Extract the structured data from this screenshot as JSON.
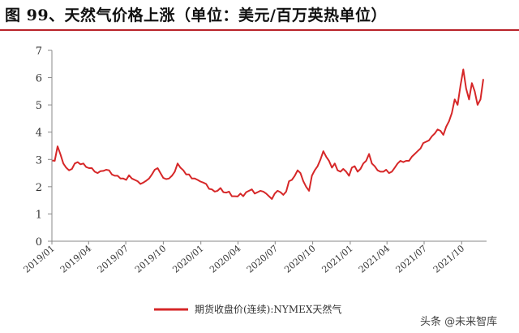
{
  "title": "图 99、天然气价格上涨（单位：美元/百万英热单位）",
  "watermark": "头条 @未来智库",
  "colors": {
    "line": "#d62728",
    "axis": "#888888",
    "title_rule": "#b9232a"
  },
  "chart_data": {
    "type": "line",
    "title": "图 99、天然气价格上涨（单位：美元/百万英热单位）",
    "xlabel": "",
    "ylabel": "",
    "ylim": [
      0,
      7
    ],
    "yticks": [
      0,
      1,
      2,
      3,
      4,
      5,
      6,
      7
    ],
    "xticks": [
      "2019/01",
      "2019/04",
      "2019/07",
      "2019/10",
      "2020/01",
      "2020/04",
      "2020/07",
      "2020/10",
      "2021/01",
      "2021/04",
      "2021/07",
      "2021/10"
    ],
    "grid": false,
    "legend_position": "bottom",
    "series": [
      {
        "name": "期货收盘价(连续):NYMEX天然气",
        "color": "#d62728",
        "points": [
          [
            "2019/01/02",
            2.96
          ],
          [
            "2019/01/08",
            2.95
          ],
          [
            "2019/01/15",
            3.48
          ],
          [
            "2019/01/22",
            3.18
          ],
          [
            "2019/01/29",
            2.85
          ],
          [
            "2019/02/05",
            2.7
          ],
          [
            "2019/02/12",
            2.6
          ],
          [
            "2019/02/19",
            2.65
          ],
          [
            "2019/02/26",
            2.85
          ],
          [
            "2019/03/05",
            2.9
          ],
          [
            "2019/03/12",
            2.82
          ],
          [
            "2019/03/19",
            2.85
          ],
          [
            "2019/03/26",
            2.72
          ],
          [
            "2019/04/02",
            2.68
          ],
          [
            "2019/04/09",
            2.68
          ],
          [
            "2019/04/16",
            2.55
          ],
          [
            "2019/04/23",
            2.5
          ],
          [
            "2019/04/30",
            2.57
          ],
          [
            "2019/05/07",
            2.58
          ],
          [
            "2019/05/14",
            2.62
          ],
          [
            "2019/05/21",
            2.6
          ],
          [
            "2019/05/28",
            2.45
          ],
          [
            "2019/06/04",
            2.4
          ],
          [
            "2019/06/11",
            2.4
          ],
          [
            "2019/06/18",
            2.3
          ],
          [
            "2019/06/25",
            2.3
          ],
          [
            "2019/07/02",
            2.25
          ],
          [
            "2019/07/09",
            2.42
          ],
          [
            "2019/07/16",
            2.3
          ],
          [
            "2019/07/23",
            2.25
          ],
          [
            "2019/07/30",
            2.2
          ],
          [
            "2019/08/06",
            2.1
          ],
          [
            "2019/08/13",
            2.15
          ],
          [
            "2019/08/20",
            2.22
          ],
          [
            "2019/08/27",
            2.3
          ],
          [
            "2019/09/03",
            2.45
          ],
          [
            "2019/09/10",
            2.62
          ],
          [
            "2019/09/17",
            2.68
          ],
          [
            "2019/09/24",
            2.5
          ],
          [
            "2019/10/01",
            2.32
          ],
          [
            "2019/10/08",
            2.28
          ],
          [
            "2019/10/15",
            2.3
          ],
          [
            "2019/10/22",
            2.4
          ],
          [
            "2019/10/29",
            2.55
          ],
          [
            "2019/11/05",
            2.85
          ],
          [
            "2019/11/12",
            2.7
          ],
          [
            "2019/11/19",
            2.6
          ],
          [
            "2019/11/26",
            2.45
          ],
          [
            "2019/12/03",
            2.45
          ],
          [
            "2019/12/10",
            2.3
          ],
          [
            "2019/12/17",
            2.3
          ],
          [
            "2019/12/24",
            2.25
          ],
          [
            "2019/12/31",
            2.19
          ],
          [
            "2020/01/07",
            2.15
          ],
          [
            "2020/01/14",
            2.1
          ],
          [
            "2020/01/21",
            1.92
          ],
          [
            "2020/01/28",
            1.9
          ],
          [
            "2020/02/04",
            1.82
          ],
          [
            "2020/02/11",
            1.85
          ],
          [
            "2020/02/18",
            1.95
          ],
          [
            "2020/02/25",
            1.8
          ],
          [
            "2020/03/03",
            1.78
          ],
          [
            "2020/03/10",
            1.82
          ],
          [
            "2020/03/17",
            1.65
          ],
          [
            "2020/03/24",
            1.65
          ],
          [
            "2020/03/31",
            1.64
          ],
          [
            "2020/04/07",
            1.75
          ],
          [
            "2020/04/14",
            1.65
          ],
          [
            "2020/04/21",
            1.8
          ],
          [
            "2020/04/28",
            1.85
          ],
          [
            "2020/05/05",
            1.9
          ],
          [
            "2020/05/12",
            1.75
          ],
          [
            "2020/05/19",
            1.8
          ],
          [
            "2020/05/26",
            1.85
          ],
          [
            "2020/06/02",
            1.82
          ],
          [
            "2020/06/09",
            1.75
          ],
          [
            "2020/06/16",
            1.65
          ],
          [
            "2020/06/23",
            1.55
          ],
          [
            "2020/06/30",
            1.75
          ],
          [
            "2020/07/07",
            1.85
          ],
          [
            "2020/07/14",
            1.8
          ],
          [
            "2020/07/21",
            1.7
          ],
          [
            "2020/07/28",
            1.82
          ],
          [
            "2020/08/04",
            2.2
          ],
          [
            "2020/08/11",
            2.25
          ],
          [
            "2020/08/18",
            2.4
          ],
          [
            "2020/08/25",
            2.6
          ],
          [
            "2020/09/01",
            2.5
          ],
          [
            "2020/09/08",
            2.2
          ],
          [
            "2020/09/15",
            2.0
          ],
          [
            "2020/09/22",
            1.85
          ],
          [
            "2020/09/29",
            2.4
          ],
          [
            "2020/10/06",
            2.6
          ],
          [
            "2020/10/13",
            2.75
          ],
          [
            "2020/10/20",
            3.0
          ],
          [
            "2020/10/27",
            3.3
          ],
          [
            "2020/11/03",
            3.1
          ],
          [
            "2020/11/10",
            2.95
          ],
          [
            "2020/11/17",
            2.7
          ],
          [
            "2020/11/24",
            2.85
          ],
          [
            "2020/12/01",
            2.6
          ],
          [
            "2020/12/08",
            2.55
          ],
          [
            "2020/12/15",
            2.65
          ],
          [
            "2020/12/22",
            2.55
          ],
          [
            "2020/12/29",
            2.4
          ],
          [
            "2021/01/05",
            2.7
          ],
          [
            "2021/01/12",
            2.75
          ],
          [
            "2021/01/19",
            2.55
          ],
          [
            "2021/01/26",
            2.65
          ],
          [
            "2021/02/02",
            2.85
          ],
          [
            "2021/02/09",
            2.95
          ],
          [
            "2021/02/16",
            3.2
          ],
          [
            "2021/02/23",
            2.85
          ],
          [
            "2021/03/02",
            2.75
          ],
          [
            "2021/03/09",
            2.6
          ],
          [
            "2021/03/16",
            2.55
          ],
          [
            "2021/03/23",
            2.55
          ],
          [
            "2021/03/30",
            2.62
          ],
          [
            "2021/04/06",
            2.5
          ],
          [
            "2021/04/13",
            2.55
          ],
          [
            "2021/04/20",
            2.7
          ],
          [
            "2021/04/27",
            2.85
          ],
          [
            "2021/05/04",
            2.95
          ],
          [
            "2021/05/11",
            2.9
          ],
          [
            "2021/05/18",
            2.95
          ],
          [
            "2021/05/25",
            2.95
          ],
          [
            "2021/06/01",
            3.1
          ],
          [
            "2021/06/08",
            3.2
          ],
          [
            "2021/06/15",
            3.3
          ],
          [
            "2021/06/22",
            3.4
          ],
          [
            "2021/06/29",
            3.6
          ],
          [
            "2021/07/06",
            3.65
          ],
          [
            "2021/07/13",
            3.7
          ],
          [
            "2021/07/20",
            3.85
          ],
          [
            "2021/07/27",
            3.95
          ],
          [
            "2021/08/03",
            4.1
          ],
          [
            "2021/08/10",
            4.05
          ],
          [
            "2021/08/17",
            3.9
          ],
          [
            "2021/08/24",
            4.2
          ],
          [
            "2021/08/31",
            4.4
          ],
          [
            "2021/09/07",
            4.7
          ],
          [
            "2021/09/14",
            5.2
          ],
          [
            "2021/09/21",
            5.0
          ],
          [
            "2021/09/28",
            5.7
          ],
          [
            "2021/10/05",
            6.3
          ],
          [
            "2021/10/12",
            5.6
          ],
          [
            "2021/10/19",
            5.2
          ],
          [
            "2021/10/26",
            5.8
          ],
          [
            "2021/11/02",
            5.5
          ],
          [
            "2021/11/09",
            5.0
          ],
          [
            "2021/11/16",
            5.2
          ],
          [
            "2021/11/23",
            5.95
          ]
        ]
      }
    ]
  }
}
